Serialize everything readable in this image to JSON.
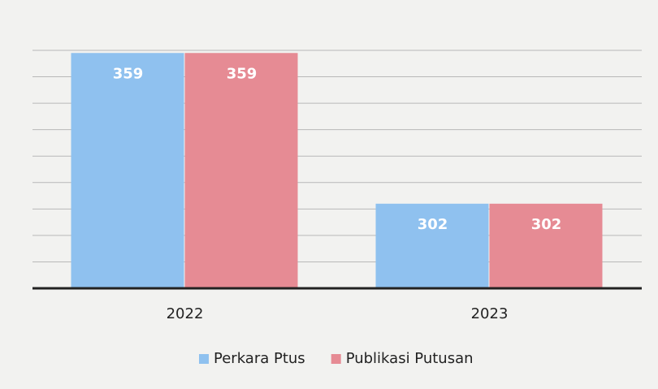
{
  "chart_data": {
    "type": "bar",
    "categories": [
      "2022",
      "2023"
    ],
    "series": [
      {
        "name": "Perkara Ptus",
        "color": "#8fc1ef",
        "values": [
          359,
          302
        ]
      },
      {
        "name": "Publikasi Putusan",
        "color": "#e68b94",
        "values": [
          359,
          302
        ]
      }
    ],
    "ylim": [
      270,
      360
    ],
    "yticks": [
      270,
      280,
      290,
      300,
      310,
      320,
      330,
      340,
      350,
      360
    ],
    "grid": true,
    "legend": "bottom"
  }
}
